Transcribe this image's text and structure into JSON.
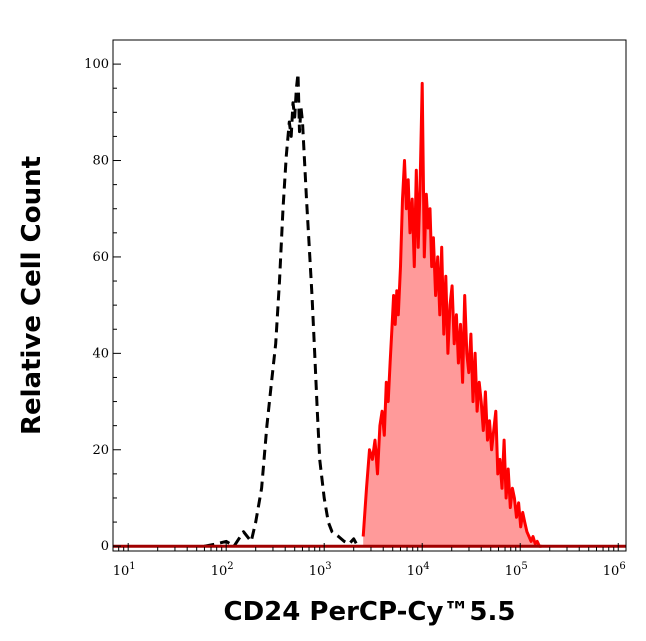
{
  "chart_data": {
    "type": "area",
    "xlabel": "CD24 PerCP-Cy™5.5",
    "ylabel": "Relative Cell Count",
    "x_scale": "log",
    "xlim": [
      7,
      1200000
    ],
    "ylim": [
      -1,
      105
    ],
    "x_ticks": [
      {
        "value": 10,
        "base": "10",
        "exp": "1"
      },
      {
        "value": 100,
        "base": "10",
        "exp": "2"
      },
      {
        "value": 1000,
        "base": "10",
        "exp": "3"
      },
      {
        "value": 10000,
        "base": "10",
        "exp": "4"
      },
      {
        "value": 100000,
        "base": "10",
        "exp": "5"
      },
      {
        "value": 1000000,
        "base": "10",
        "exp": "6"
      }
    ],
    "y_ticks": [
      0,
      20,
      40,
      60,
      80,
      100
    ],
    "y_tick_labels": [
      "0",
      "20",
      "40",
      "60",
      "80",
      "100"
    ],
    "grid": false,
    "legend": "none",
    "series": [
      {
        "style": "dashed",
        "color": "#000000",
        "fill": "none",
        "x": [
          60,
          80,
          100,
          120,
          150,
          180,
          200,
          230,
          260,
          290,
          320,
          350,
          380,
          410,
          440,
          460,
          480,
          500,
          520,
          540,
          560,
          580,
          600,
          630,
          660,
          700,
          750,
          800,
          850,
          900,
          1000,
          1100,
          1200,
          1400,
          1600,
          1800,
          2000,
          2200
        ],
        "y": [
          0,
          0.5,
          1,
          0,
          3,
          1,
          5,
          12,
          25,
          34,
          42,
          55,
          70,
          81,
          88,
          85,
          92,
          89,
          95,
          98,
          86,
          91,
          88,
          80,
          72,
          63,
          52,
          40,
          28,
          18,
          10,
          5,
          3,
          2,
          1,
          0.5,
          1.5,
          0
        ]
      },
      {
        "style": "solid",
        "color": "#ff0000",
        "fill": "#ff9a9a",
        "x": [
          2500,
          2700,
          2900,
          3100,
          3300,
          3500,
          3700,
          3900,
          4100,
          4300,
          4500,
          4700,
          4900,
          5100,
          5300,
          5500,
          5700,
          6000,
          6300,
          6600,
          6900,
          7200,
          7500,
          7900,
          8300,
          8700,
          9100,
          9500,
          10000,
          10500,
          11000,
          11500,
          12000,
          12500,
          13000,
          13700,
          14400,
          15100,
          15800,
          16600,
          17400,
          18300,
          19200,
          20200,
          21200,
          22300,
          23400,
          24600,
          25800,
          27100,
          28500,
          29900,
          31400,
          33000,
          34600,
          36300,
          38100,
          40000,
          42000,
          44100,
          46300,
          48600,
          51000,
          53600,
          56300,
          59100,
          62000,
          65100,
          68400,
          71800,
          75400,
          79200,
          83200,
          87300,
          91700,
          96300,
          101000,
          106000,
          111000,
          117000,
          123000,
          129000,
          135000,
          142000,
          149000,
          157000,
          165000
        ],
        "y": [
          2,
          12,
          20,
          18,
          22,
          15,
          25,
          28,
          23,
          34,
          30,
          38,
          45,
          52,
          46,
          53,
          48,
          58,
          72,
          80,
          70,
          76,
          65,
          72,
          58,
          78,
          62,
          74,
          96,
          60,
          73,
          66,
          70,
          58,
          64,
          52,
          60,
          48,
          62,
          44,
          56,
          40,
          50,
          54,
          42,
          48,
          38,
          46,
          34,
          52,
          40,
          36,
          44,
          30,
          40,
          28,
          34,
          30,
          24,
          32,
          22,
          26,
          20,
          24,
          28,
          15,
          18,
          12,
          22,
          10,
          16,
          8,
          12,
          10,
          6,
          9,
          4,
          7,
          5,
          3,
          2,
          1,
          2,
          0.5,
          1,
          0,
          0
        ]
      },
      {
        "style": "solid",
        "color": "#a00000",
        "fill": "none",
        "x": [
          7,
          100,
          1000,
          10000,
          100000,
          1000000,
          1200000
        ],
        "y": [
          0,
          0,
          0,
          0,
          0,
          0,
          0
        ]
      }
    ]
  }
}
